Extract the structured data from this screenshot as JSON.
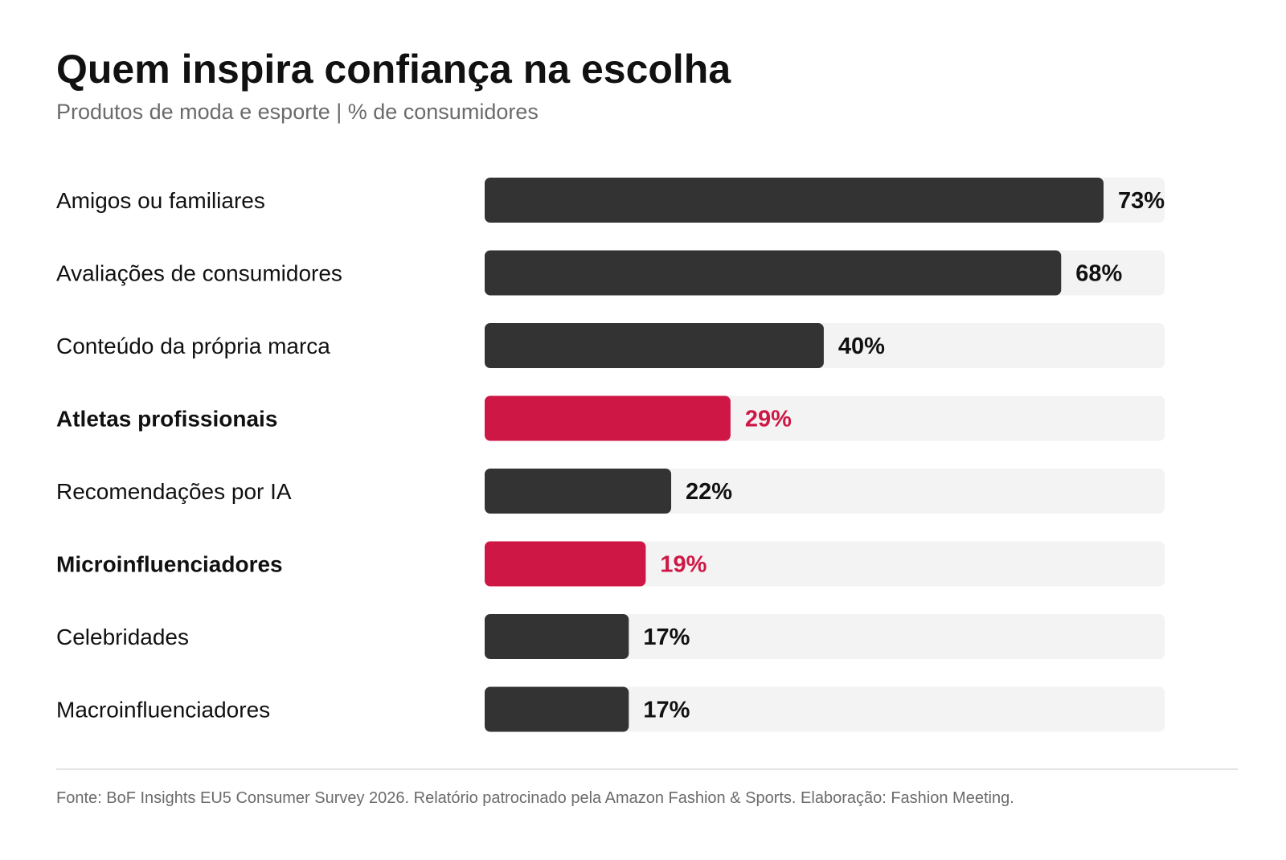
{
  "chart_data": {
    "type": "bar",
    "orientation": "horizontal",
    "title": "Quem inspira confiança na escolha",
    "subtitle": "Produtos de moda e esporte | % de consumidores",
    "categories": [
      "Amigos ou familiares",
      "Avaliações de consumidores",
      "Conteúdo da própria marca",
      "Atletas profissionais",
      "Recomendações por IA",
      "Microinfluenciadores",
      "Celebridades",
      "Macroinfluenciadores"
    ],
    "values": [
      73,
      68,
      40,
      29,
      22,
      19,
      17,
      17
    ],
    "value_labels": [
      "73%",
      "68%",
      "40%",
      "29%",
      "22%",
      "19%",
      "17%",
      "17%"
    ],
    "highlighted": [
      false,
      false,
      false,
      true,
      false,
      true,
      false,
      false
    ],
    "xlim": [
      0,
      80
    ],
    "grid": false,
    "legend": "none",
    "colors": {
      "bar": "#333333",
      "highlight": "#cf1746",
      "track": "#f3f3f3",
      "value_text": "#111111",
      "highlight_text": "#cf1746"
    }
  },
  "footer": {
    "source": "Fonte: BoF Insights EU5 Consumer Survey 2026. Relatório patrocinado pela Amazon Fashion & Sports. Elaboração: Fashion Meeting."
  }
}
